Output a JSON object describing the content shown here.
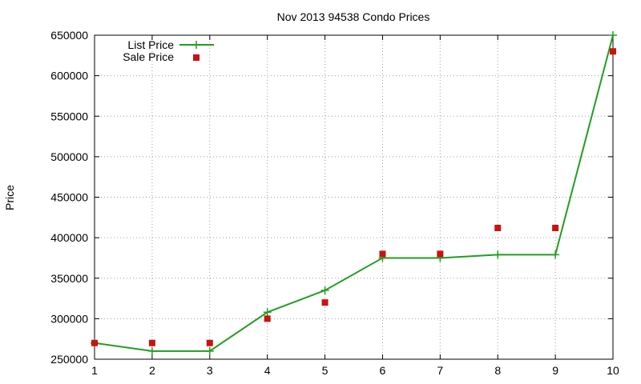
{
  "chart_data": {
    "type": "line",
    "title": "Nov 2013 94538 Condo Prices",
    "xlabel": "",
    "ylabel": "Price",
    "xlim": [
      1,
      10
    ],
    "ylim": [
      250000,
      650000
    ],
    "xticks": [
      1,
      2,
      3,
      4,
      5,
      6,
      7,
      8,
      9,
      10
    ],
    "yticks": [
      250000,
      300000,
      350000,
      400000,
      450000,
      500000,
      550000,
      600000,
      650000
    ],
    "grid": true,
    "legend_position": "top-left",
    "series": [
      {
        "name": "List Price",
        "style": "line-with-plus-markers",
        "color": "#1f9f1f",
        "x": [
          1,
          2,
          3,
          4,
          5,
          6,
          7,
          8,
          9,
          10
        ],
        "values": [
          270000,
          260000,
          260000,
          308000,
          335000,
          375000,
          375000,
          379000,
          379000,
          650000
        ]
      },
      {
        "name": "Sale Price",
        "style": "square-markers",
        "color": "#cc1111",
        "x": [
          1,
          2,
          3,
          4,
          5,
          6,
          7,
          8,
          9,
          10
        ],
        "values": [
          270000,
          270000,
          270000,
          300000,
          320000,
          380000,
          380000,
          412000,
          412000,
          630000
        ]
      }
    ]
  }
}
